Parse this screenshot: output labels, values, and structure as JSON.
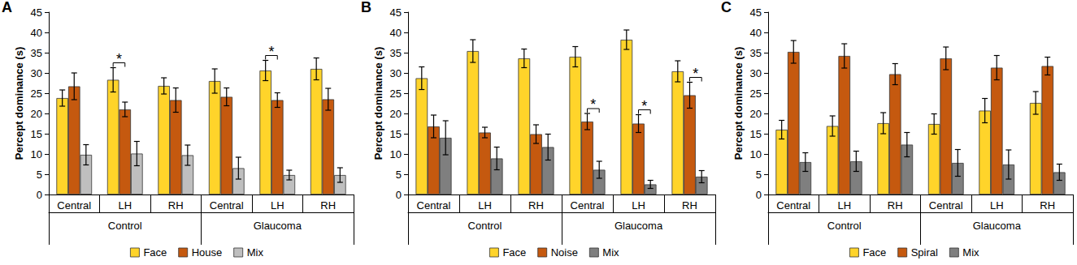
{
  "chart_data": [
    {
      "type": "bar",
      "title": "A",
      "ylabel": "Percept dominance (s)",
      "categories": [
        "Central",
        "LH",
        "RH",
        "Central",
        "LH",
        "RH"
      ],
      "x_groups": [
        {
          "label": "Control",
          "count": 3
        },
        {
          "label": "Glaucoma",
          "count": 3
        }
      ],
      "ylim": [
        0,
        45
      ],
      "yticks": [
        0,
        5,
        10,
        15,
        20,
        25,
        30,
        35,
        40,
        45
      ],
      "grid": false,
      "legend": "bottom",
      "series": [
        {
          "name": "Face",
          "color": "#FFD42A",
          "values": [
            23.8,
            28.3,
            26.8,
            28.0,
            30.6,
            31.0
          ],
          "errors": [
            2.0,
            3.0,
            2.0,
            3.0,
            2.5,
            2.7
          ]
        },
        {
          "name": "House",
          "color": "#C5590F",
          "values": [
            26.7,
            21.0,
            23.3,
            24.1,
            23.3,
            23.5
          ],
          "errors": [
            3.3,
            1.8,
            3.0,
            2.2,
            1.8,
            2.7
          ]
        },
        {
          "name": "Mix",
          "color": "#BFBFBF",
          "values": [
            9.8,
            10.1,
            9.7,
            6.5,
            4.8,
            4.8
          ],
          "errors": [
            2.5,
            3.0,
            2.5,
            2.7,
            1.2,
            1.8
          ]
        }
      ],
      "annotations": [
        {
          "text": "*",
          "x": 1,
          "from": "Face",
          "to": "House"
        },
        {
          "text": "*",
          "x": 4,
          "from": "Face",
          "to": "House"
        }
      ]
    },
    {
      "type": "bar",
      "title": "B",
      "ylabel": "Percept dominance (s)",
      "categories": [
        "Central",
        "LH",
        "RH",
        "Central",
        "LH",
        "RH"
      ],
      "x_groups": [
        {
          "label": "Control",
          "count": 3
        },
        {
          "label": "Glaucoma",
          "count": 3
        }
      ],
      "ylim": [
        0,
        45
      ],
      "yticks": [
        0,
        5,
        10,
        15,
        20,
        25,
        30,
        35,
        40,
        45
      ],
      "grid": false,
      "legend": "bottom",
      "series": [
        {
          "name": "Face",
          "color": "#FFD42A",
          "values": [
            28.7,
            35.4,
            33.6,
            34.0,
            38.2,
            30.4
          ],
          "errors": [
            2.8,
            2.8,
            2.3,
            2.5,
            2.4,
            2.6
          ]
        },
        {
          "name": "Noise",
          "color": "#C5590F",
          "values": [
            16.8,
            15.3,
            14.9,
            18.0,
            17.5,
            24.5
          ],
          "errors": [
            2.8,
            1.3,
            2.3,
            2.0,
            2.2,
            3.2
          ]
        },
        {
          "name": "Mix",
          "color": "#7F7F7F",
          "values": [
            14.0,
            8.9,
            11.7,
            6.1,
            2.5,
            4.4
          ],
          "errors": [
            4.2,
            2.8,
            3.2,
            2.1,
            1.0,
            1.5
          ]
        }
      ],
      "annotations": [
        {
          "text": "*",
          "x": 3,
          "from": "Noise",
          "to": "Mix"
        },
        {
          "text": "*",
          "x": 4,
          "from": "Noise",
          "to": "Mix"
        },
        {
          "text": "*",
          "x": 5,
          "from": "Noise",
          "to": "Mix"
        }
      ]
    },
    {
      "type": "bar",
      "title": "C",
      "ylabel": "Percept dominance (s)",
      "categories": [
        "Central",
        "LH",
        "RH",
        "Central",
        "LH",
        "RH"
      ],
      "x_groups": [
        {
          "label": "Control",
          "count": 3
        },
        {
          "label": "Glaucoma",
          "count": 3
        }
      ],
      "ylim": [
        0,
        45
      ],
      "yticks": [
        0,
        5,
        10,
        15,
        20,
        25,
        30,
        35,
        40,
        45
      ],
      "grid": false,
      "legend": "bottom",
      "series": [
        {
          "name": "Face",
          "color": "#FFD42A",
          "values": [
            16.0,
            16.9,
            17.6,
            17.4,
            20.7,
            22.6
          ],
          "errors": [
            2.3,
            2.5,
            2.6,
            2.5,
            3.0,
            2.8
          ]
        },
        {
          "name": "Spiral",
          "color": "#C5590F",
          "values": [
            35.2,
            34.2,
            29.7,
            33.6,
            31.3,
            31.7
          ],
          "errors": [
            2.8,
            3.0,
            2.6,
            2.8,
            3.0,
            2.2
          ]
        },
        {
          "name": "Mix",
          "color": "#7F7F7F",
          "values": [
            8.0,
            8.2,
            12.3,
            7.8,
            7.4,
            5.5
          ],
          "errors": [
            2.3,
            2.5,
            3.0,
            3.3,
            3.6,
            2.0
          ]
        }
      ],
      "annotations": []
    }
  ]
}
